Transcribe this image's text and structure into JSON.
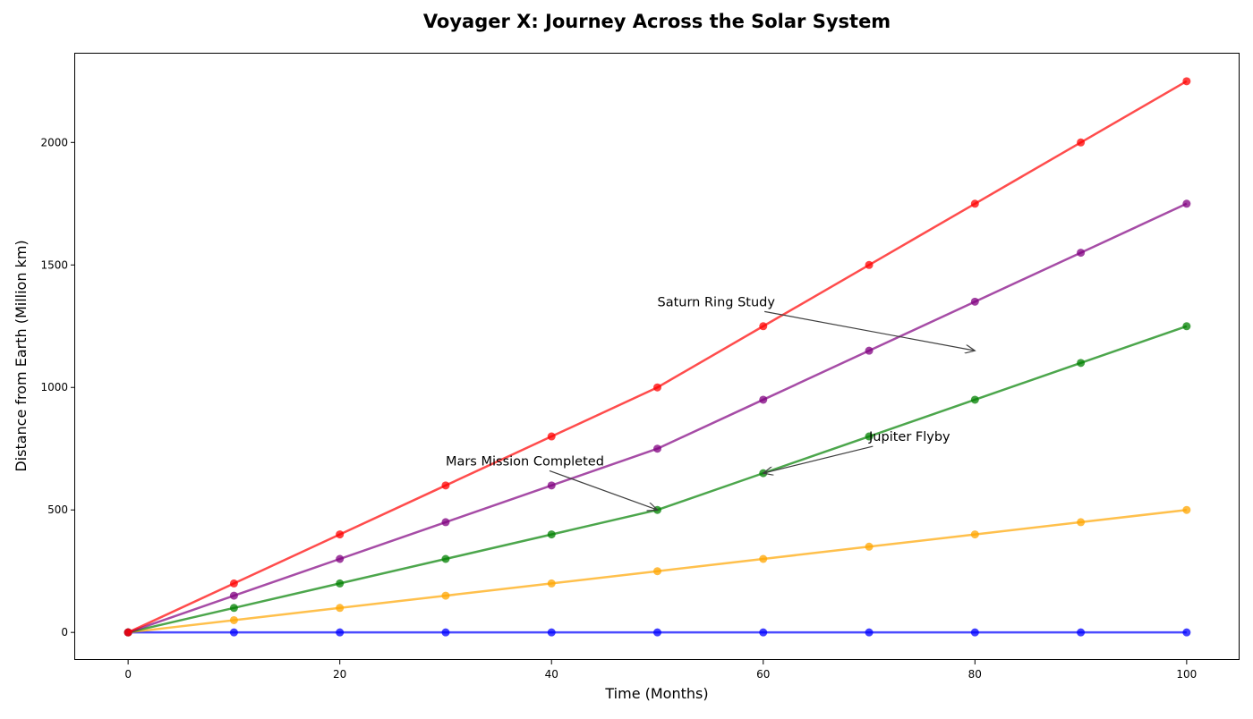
{
  "chart_data": {
    "type": "line",
    "title": "Voyager X: Journey Across the Solar System",
    "xlabel": "Time (Months)",
    "ylabel": "Distance from Earth (Million km)",
    "xlim": [
      -5,
      105
    ],
    "ylim": [
      -112.5,
      2362.5
    ],
    "xticks": [
      0,
      20,
      40,
      60,
      80,
      100
    ],
    "yticks": [
      0,
      500,
      1000,
      1500,
      2000
    ],
    "grid": false,
    "x": [
      0,
      10,
      20,
      30,
      40,
      50,
      60,
      70,
      80,
      90,
      100
    ],
    "series": [
      {
        "color": "#0000ff",
        "values": [
          0,
          0,
          0,
          0,
          0,
          0,
          0,
          0,
          0,
          0,
          0
        ]
      },
      {
        "color": "#ffa500",
        "values": [
          0,
          50,
          100,
          150,
          200,
          250,
          300,
          350,
          400,
          450,
          500
        ]
      },
      {
        "color": "#008000",
        "values": [
          0,
          100,
          200,
          300,
          400,
          500,
          650,
          800,
          950,
          1100,
          1250
        ]
      },
      {
        "color": "#800080",
        "values": [
          0,
          150,
          300,
          450,
          600,
          750,
          950,
          1150,
          1350,
          1550,
          1750
        ]
      },
      {
        "color": "#ff0000",
        "values": [
          0,
          200,
          400,
          600,
          800,
          1000,
          1250,
          1500,
          1750,
          2000,
          2250
        ]
      }
    ],
    "annotations": [
      {
        "text": "Mars Mission Completed",
        "point": [
          50,
          500
        ],
        "text_at": [
          30,
          700
        ]
      },
      {
        "text": "Jupiter Flyby",
        "point": [
          60,
          650
        ],
        "text_at": [
          70,
          800
        ]
      },
      {
        "text": "Saturn Ring Study",
        "point": [
          80,
          1150
        ],
        "text_at": [
          50,
          1350
        ]
      }
    ]
  }
}
